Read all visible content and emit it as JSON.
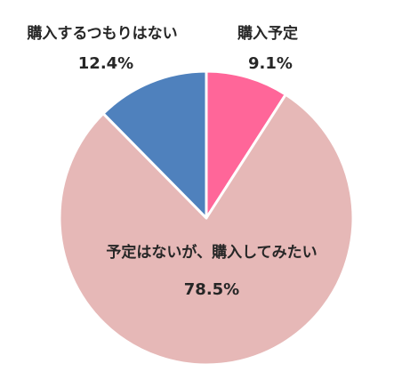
{
  "chart_data": {
    "type": "pie",
    "slices": [
      {
        "label": "購入予定",
        "value": 9.1,
        "value_label": "9.1%",
        "color": "#FF6699"
      },
      {
        "label": "予定はないが、購入してみたい",
        "value": 78.5,
        "value_label": "78.5%",
        "color": "#E6B8B7"
      },
      {
        "label": "購入するつもりはない",
        "value": 12.4,
        "value_label": "12.4%",
        "color": "#4F81BD"
      }
    ],
    "start_angle": "12 o'clock",
    "direction": "clockwise",
    "separator_color": "#FFFFFF"
  }
}
